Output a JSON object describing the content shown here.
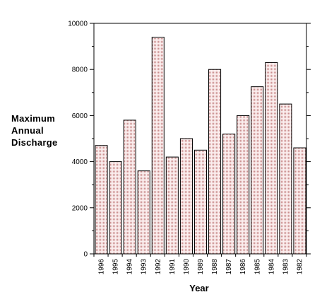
{
  "chart_data": {
    "type": "bar",
    "ylabel_lines": [
      "Maximum",
      "Annual",
      "Discharge"
    ],
    "xlabel": "Year",
    "categories": [
      "1996",
      "1995",
      "1994",
      "1993",
      "1992",
      "1991",
      "1990",
      "1989",
      "1988",
      "1987",
      "1986",
      "1985",
      "1984",
      "1983",
      "1982"
    ],
    "values": [
      4700,
      4000,
      5800,
      3600,
      9400,
      4200,
      5000,
      4500,
      8000,
      5200,
      6000,
      7250,
      8300,
      6500,
      4600
    ],
    "ylim": [
      0,
      10000
    ],
    "yticks": [
      0,
      2000,
      4000,
      6000,
      8000,
      10000
    ],
    "ytick_labels": [
      "0",
      "2000",
      "4000",
      "6000",
      "8000",
      "10000"
    ],
    "bar_fill": "#f4dada",
    "bar_stroke": "#000000",
    "grid": false
  }
}
